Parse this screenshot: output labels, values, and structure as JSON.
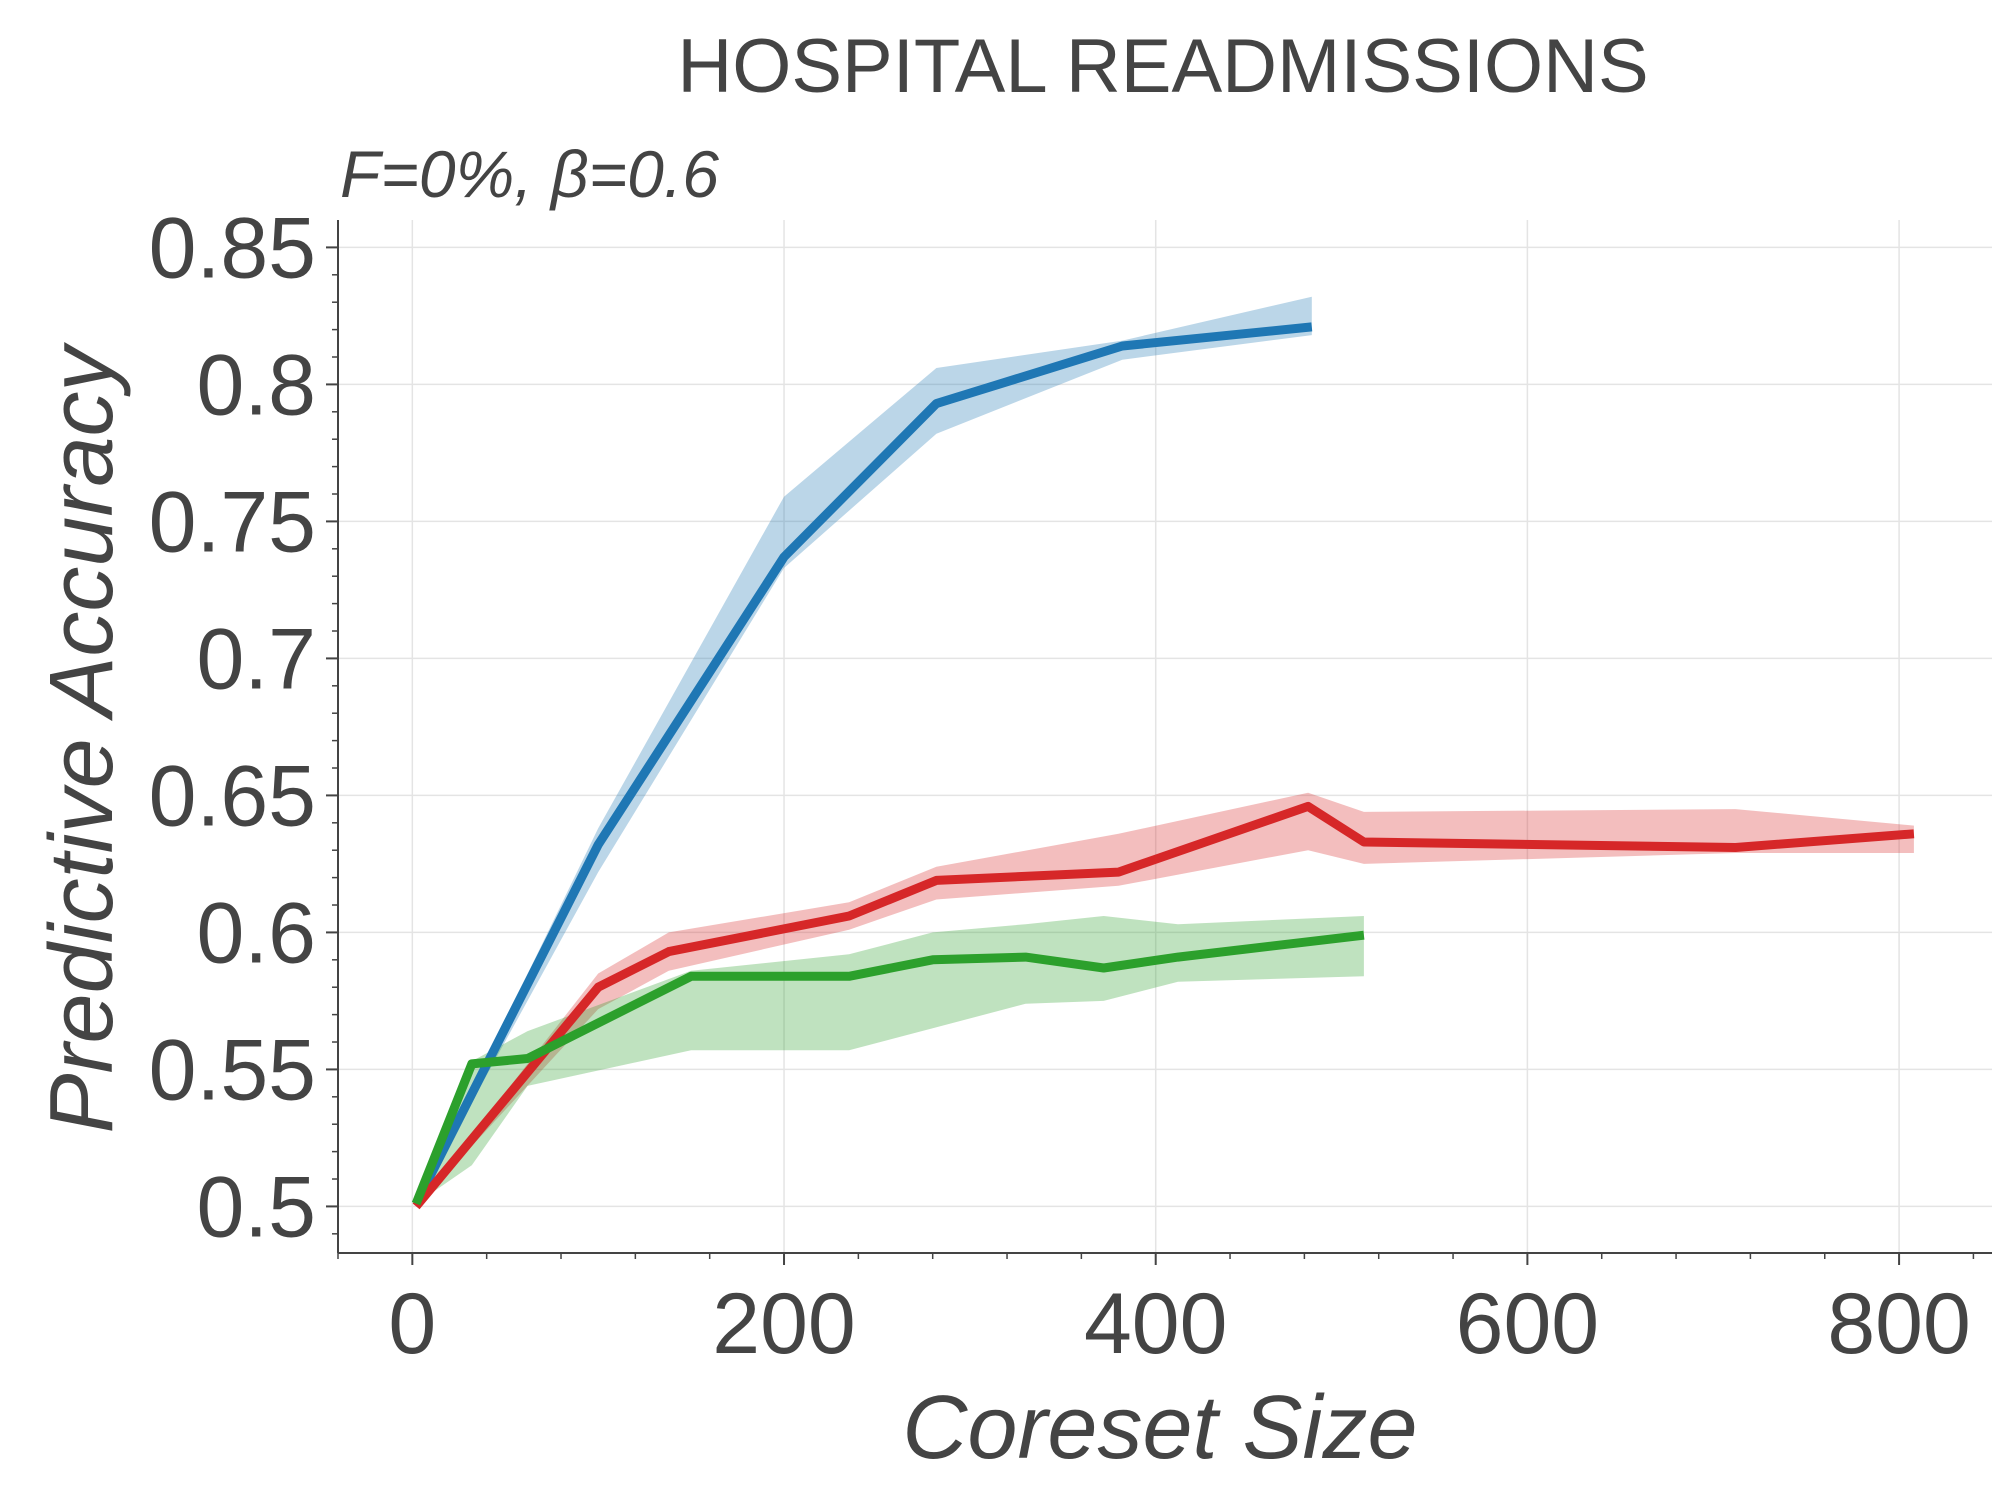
{
  "chart_data": {
    "type": "line",
    "title": "HOSPITAL READMISSIONS",
    "subtitle": "F=0%,  β=0.6",
    "xlabel": "Coreset Size",
    "ylabel": "Predictive Accuracy",
    "xlim": [
      -40,
      850
    ],
    "ylim": [
      0.483,
      0.86
    ],
    "xticks": [
      0,
      200,
      400,
      600,
      800
    ],
    "xtick_labels": [
      "0",
      "200",
      "400",
      "600",
      "800"
    ],
    "yticks": [
      0.5,
      0.55,
      0.6,
      0.65,
      0.7,
      0.75,
      0.8,
      0.85
    ],
    "ytick_labels": [
      "0.5",
      "0.55",
      "0.6",
      "0.65",
      "0.7",
      "0.75",
      "0.8",
      "0.85"
    ],
    "grid": true,
    "series": [
      {
        "color": "#1f77b4",
        "x": [
          2,
          100,
          200,
          282,
          382,
          484
        ],
        "y": [
          0.501,
          0.632,
          0.737,
          0.793,
          0.814,
          0.821
        ],
        "lower": [
          0.501,
          0.622,
          0.733,
          0.782,
          0.809,
          0.818
        ],
        "upper": [
          0.501,
          0.638,
          0.759,
          0.806,
          0.816,
          0.832
        ]
      },
      {
        "color": "#d62728",
        "x": [
          2,
          100,
          138,
          235,
          282,
          380,
          482,
          512,
          712,
          808
        ],
        "y": [
          0.5,
          0.58,
          0.593,
          0.606,
          0.619,
          0.622,
          0.646,
          0.633,
          0.631,
          0.636
        ],
        "lower": [
          0.5,
          0.572,
          0.586,
          0.601,
          0.612,
          0.617,
          0.63,
          0.625,
          0.629,
          0.629
        ],
        "upper": [
          0.5,
          0.585,
          0.6,
          0.611,
          0.624,
          0.636,
          0.651,
          0.644,
          0.645,
          0.639
        ]
      },
      {
        "color": "#2ca02c",
        "x": [
          2,
          32,
          62,
          150,
          235,
          280,
          330,
          372,
          412,
          512
        ],
        "y": [
          0.501,
          0.552,
          0.554,
          0.584,
          0.584,
          0.59,
          0.591,
          0.587,
          0.591,
          0.599
        ],
        "lower": [
          0.501,
          0.515,
          0.544,
          0.557,
          0.557,
          0.565,
          0.574,
          0.575,
          0.582,
          0.584
        ],
        "upper": [
          0.501,
          0.553,
          0.564,
          0.586,
          0.592,
          0.6,
          0.603,
          0.606,
          0.603,
          0.606
        ]
      }
    ]
  }
}
